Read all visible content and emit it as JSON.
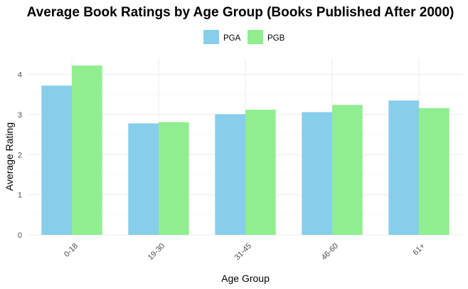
{
  "chart_data": {
    "type": "bar",
    "title": "Average Book Ratings by Age Group (Books Published After 2000)",
    "xlabel": "Age Group",
    "ylabel": "Average Rating",
    "categories": [
      "0-18",
      "19-30",
      "31-45",
      "46-60",
      "61+"
    ],
    "series": [
      {
        "name": "PGA",
        "color": "#87CEEB",
        "values": [
          3.72,
          2.78,
          3.01,
          3.06,
          3.35
        ]
      },
      {
        "name": "PGB",
        "color": "#90EE90",
        "values": [
          4.22,
          2.81,
          3.12,
          3.24,
          3.16
        ]
      }
    ],
    "ylim": [
      0,
      4.4
    ],
    "yticks": [
      0,
      1,
      2,
      3,
      4
    ],
    "grid": true,
    "legend_position": "top"
  }
}
